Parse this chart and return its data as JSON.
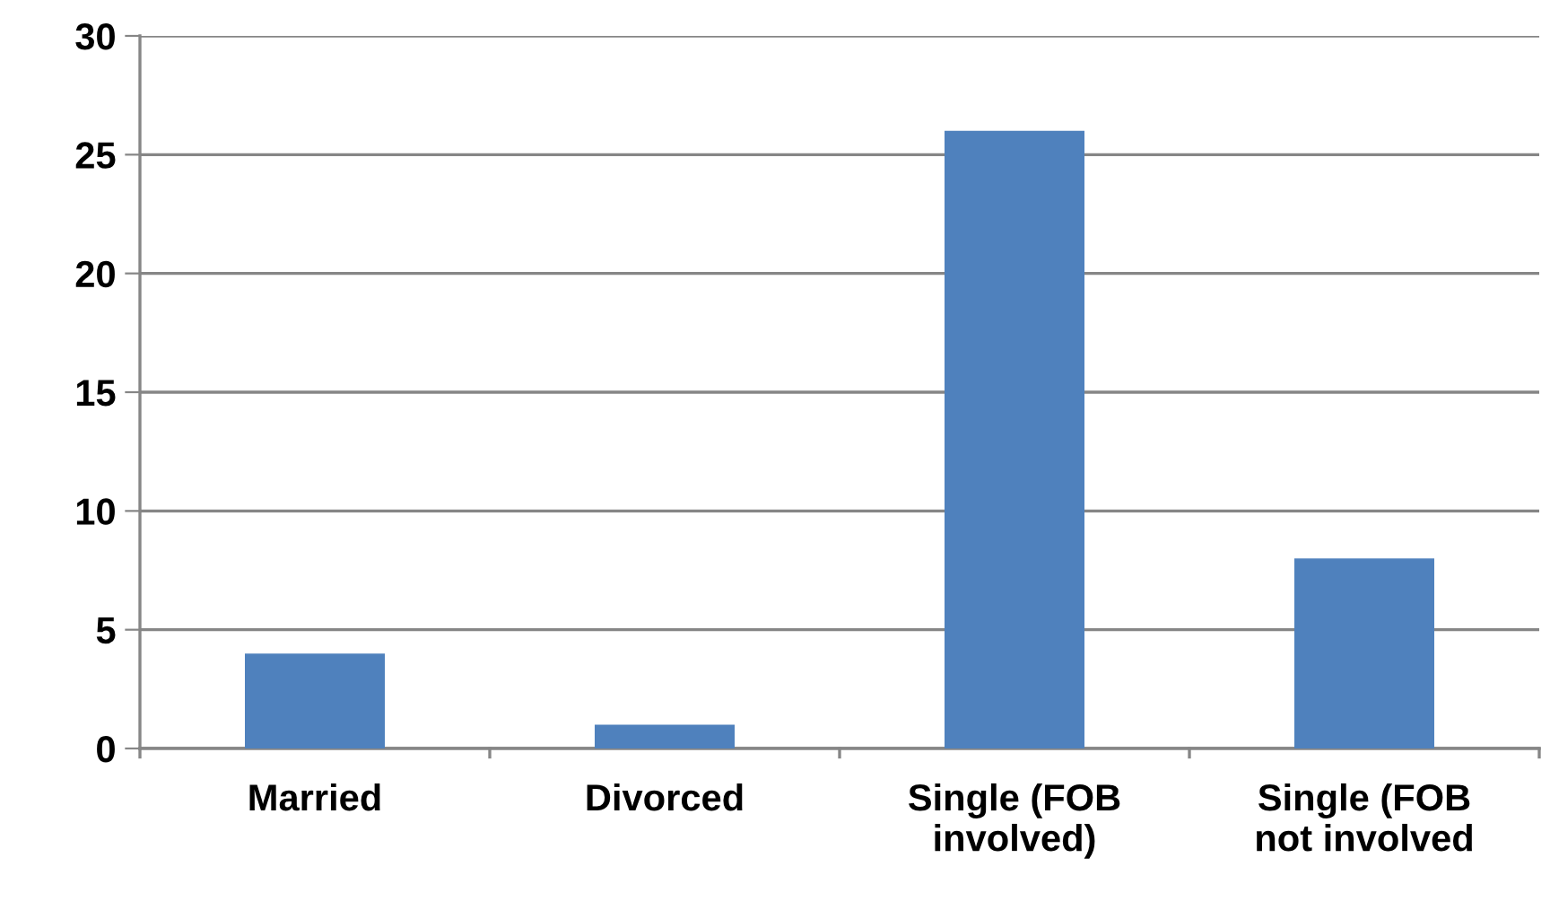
{
  "chart_data": {
    "type": "bar",
    "categories": [
      "Married",
      "Divorced",
      "Single (FOB\ninvolved)",
      "Single (FOB\nnot involved"
    ],
    "values": [
      4,
      1,
      26,
      8
    ],
    "color": "#4f81bd",
    "ylim": [
      0,
      30
    ],
    "yticks": [
      0,
      5,
      10,
      15,
      20,
      25,
      30
    ],
    "grid": "y"
  }
}
